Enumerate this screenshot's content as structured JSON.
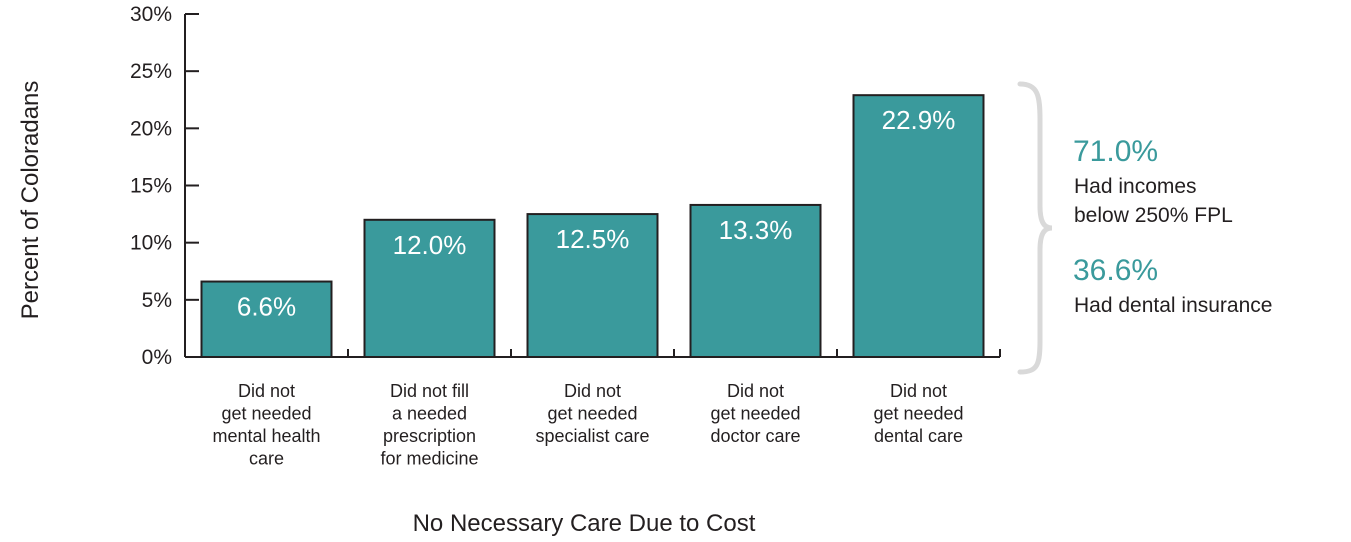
{
  "chart_data": {
    "type": "bar",
    "categories": [
      [
        "Did not",
        "get needed",
        "mental health",
        "care"
      ],
      [
        "Did not fill",
        "a needed",
        "prescription",
        "for medicine"
      ],
      [
        "Did not",
        "get needed",
        "specialist care"
      ],
      [
        "Did not",
        "get needed",
        "doctor care"
      ],
      [
        "Did not",
        "get needed",
        "dental care"
      ]
    ],
    "values": [
      6.6,
      12.0,
      12.5,
      13.3,
      22.9
    ],
    "value_labels": [
      "6.6%",
      "12.0%",
      "12.5%",
      "13.3%",
      "22.9%"
    ],
    "xlabel": "No Necessary Care Due to Cost",
    "ylabel": "Percent of Coloradans",
    "ylim": [
      0,
      30
    ],
    "yticks": [
      0,
      5,
      10,
      15,
      20,
      25,
      30
    ],
    "ytick_labels": [
      "0%",
      "5%",
      "10%",
      "15%",
      "20%",
      "25%",
      "30%"
    ],
    "grid": false,
    "bar_color": "#3a9a9c",
    "annotations": [
      {
        "value": "71.0%",
        "lines": [
          "Had incomes",
          "below 250% FPL"
        ]
      },
      {
        "value": "36.6%",
        "lines": [
          "Had dental insurance"
        ]
      }
    ],
    "annotation_color": "#3a9a9c",
    "brace_color": "#d9d9d9"
  }
}
